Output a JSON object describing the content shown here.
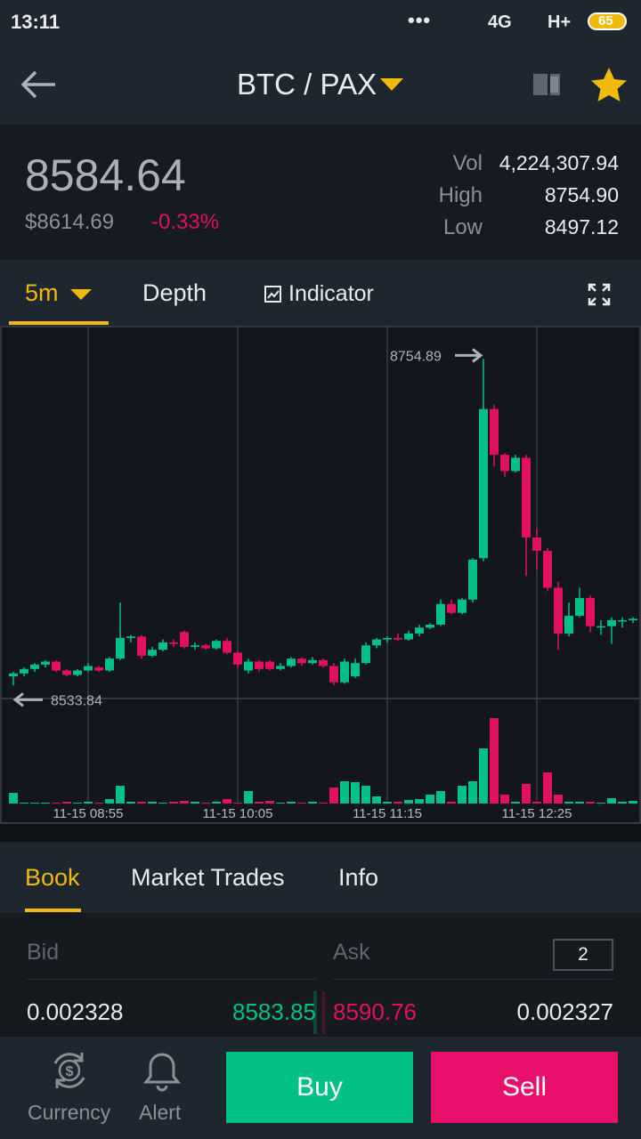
{
  "status_bar": {
    "time": "13:11",
    "network_1": "4G",
    "network_2": "H+",
    "battery": "65"
  },
  "header": {
    "pair": "BTC / PAX"
  },
  "ticker": {
    "price": "8584.64",
    "fiat_price": "$8614.69",
    "change": "-0.33%",
    "stats": [
      {
        "label": "Vol",
        "value": "4,224,307.94"
      },
      {
        "label": "High",
        "value": "8754.90"
      },
      {
        "label": "Low",
        "value": "8497.12"
      }
    ]
  },
  "chart_tabs": [
    "5m",
    "Depth",
    "Indicator"
  ],
  "chart_data": {
    "type": "candlestick",
    "categories": [
      null,
      null,
      null,
      null,
      null,
      null,
      null,
      "11-15 08:55",
      null,
      null,
      null,
      null,
      null,
      null,
      null,
      null,
      null,
      null,
      null,
      null,
      null,
      "11-15 10:05",
      null,
      null,
      null,
      null,
      null,
      null,
      null,
      null,
      null,
      null,
      null,
      null,
      null,
      "11-15 11:15",
      null,
      null,
      null,
      null,
      null,
      null,
      null,
      null,
      null,
      null,
      null,
      null,
      null,
      "11-15 12:25",
      null,
      null,
      null,
      null,
      null,
      null,
      null,
      null,
      null
    ],
    "open": [
      8540,
      8542,
      8545,
      8548,
      8550,
      8544,
      8541,
      8544,
      8546,
      8544,
      8552,
      8566,
      8567,
      8554,
      8558,
      8563,
      8570,
      8560,
      8561,
      8559,
      8564,
      8556,
      8544,
      8550,
      8550,
      8545,
      8547,
      8552,
      8549,
      8551,
      8547,
      8536,
      8540,
      8549,
      8561,
      8565,
      8566,
      8565,
      8569,
      8573,
      8575,
      8589,
      8583,
      8592,
      8620,
      8721,
      8690,
      8679,
      8688,
      8634,
      8625,
      8600,
      8569,
      8581,
      8593,
      8574,
      8574,
      8578,
      8578
    ],
    "high": [
      8543,
      8546,
      8549,
      8551,
      8551,
      8545,
      8545,
      8549,
      8547,
      8553,
      8590,
      8568,
      8568,
      8560,
      8565,
      8565,
      8571,
      8563,
      8562,
      8565,
      8566,
      8557,
      8552,
      8551,
      8551,
      8549,
      8553,
      8553,
      8553,
      8552,
      8549,
      8552,
      8552,
      8563,
      8566,
      8567,
      8569,
      8571,
      8575,
      8576,
      8592,
      8592,
      8593,
      8620,
      8754.89,
      8724,
      8691,
      8690,
      8690,
      8640,
      8627,
      8604,
      8590,
      8600,
      8595,
      8578,
      8580,
      8580,
      8580
    ],
    "low": [
      8533.84,
      8540,
      8543,
      8546,
      8543,
      8540,
      8540,
      8543,
      8543,
      8543,
      8551,
      8563,
      8552,
      8553,
      8557,
      8560,
      8559,
      8558,
      8558,
      8558,
      8555,
      8546,
      8542,
      8543,
      8544,
      8544,
      8546,
      8547,
      8548,
      8546,
      8534,
      8535,
      8539,
      8548,
      8559,
      8563,
      8564,
      8564,
      8567,
      8572,
      8574,
      8582,
      8582,
      8590,
      8618,
      8682,
      8675,
      8678,
      8608,
      8612,
      8598,
      8558,
      8567,
      8580,
      8570,
      8568,
      8562,
      8573,
      8576
    ],
    "close": [
      8542,
      8545,
      8548,
      8550,
      8544,
      8541,
      8544,
      8547,
      8544,
      8552,
      8566,
      8567,
      8554,
      8558,
      8563,
      8562,
      8560,
      8561,
      8559,
      8564,
      8556,
      8548,
      8550,
      8545,
      8545,
      8547,
      8552,
      8549,
      8551,
      8547,
      8536,
      8550,
      8549,
      8561,
      8565,
      8566,
      8565,
      8569,
      8573,
      8575,
      8589,
      8583,
      8592,
      8619,
      8721,
      8690,
      8679,
      8688,
      8634,
      8625,
      8600,
      8569,
      8581,
      8593,
      8574,
      8574,
      8578,
      8578,
      8579
    ],
    "volume": [
      12,
      1,
      1,
      1,
      1,
      2,
      1,
      2,
      1,
      5,
      20,
      2,
      2,
      2,
      1,
      2,
      3,
      2,
      1,
      2,
      5,
      1,
      14,
      2,
      3,
      1,
      2,
      1,
      2,
      1,
      18,
      25,
      24,
      20,
      8,
      2,
      2,
      4,
      5,
      10,
      14,
      2,
      20,
      25,
      62,
      96,
      10,
      2,
      22,
      2,
      35,
      10,
      2,
      2,
      2,
      1,
      6,
      2,
      3
    ],
    "ylim": [
      8525,
      8775
    ],
    "y2lim": [
      0,
      100
    ],
    "up_color": "#03c087",
    "down_color": "#e0115f"
  },
  "book_tabs": [
    "Book",
    "Market Trades",
    "Info"
  ],
  "order_book": {
    "bid_label": "Bid",
    "ask_label": "Ask",
    "precision": "2",
    "rows": [
      [
        "0.002328",
        "8583.85",
        "8590.76",
        "0.002327"
      ]
    ]
  },
  "bottom_bar": {
    "nav": [
      "Currency",
      "Alert"
    ],
    "buy": "Buy",
    "sell": "Sell"
  }
}
